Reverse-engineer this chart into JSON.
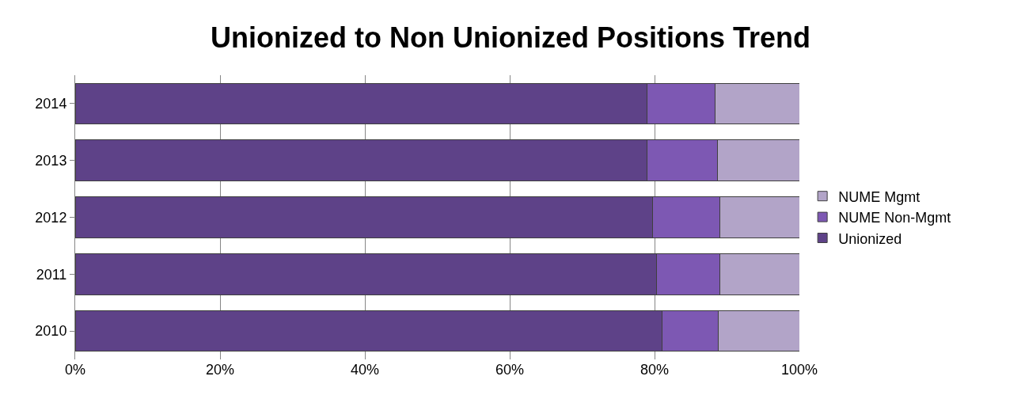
{
  "chart_data": {
    "type": "bar",
    "title": "Unionized to Non Unionized Positions Trend",
    "orientation": "horizontal",
    "stacked": true,
    "categories": [
      "2014",
      "2013",
      "2012",
      "2011",
      "2010"
    ],
    "series": [
      {
        "name": "Unionized",
        "color": "#5e4288",
        "values": [
          79.0,
          79.0,
          79.7,
          80.3,
          81.0
        ]
      },
      {
        "name": "NUME Non-Mgmt",
        "color": "#7d58b3",
        "values": [
          9.4,
          9.7,
          9.3,
          8.7,
          7.8
        ]
      },
      {
        "name": "NUME Mgmt",
        "color": "#b2a4c8",
        "values": [
          11.6,
          11.3,
          11.0,
          11.0,
          11.2
        ]
      }
    ],
    "xlim": [
      0,
      100
    ],
    "xticks": [
      {
        "value": 0,
        "label": "0%"
      },
      {
        "value": 20,
        "label": "20%"
      },
      {
        "value": 40,
        "label": "40%"
      },
      {
        "value": 60,
        "label": "60%"
      },
      {
        "value": 80,
        "label": "80%"
      },
      {
        "value": 100,
        "label": "100%"
      }
    ],
    "grid": "x",
    "legend": "right"
  }
}
